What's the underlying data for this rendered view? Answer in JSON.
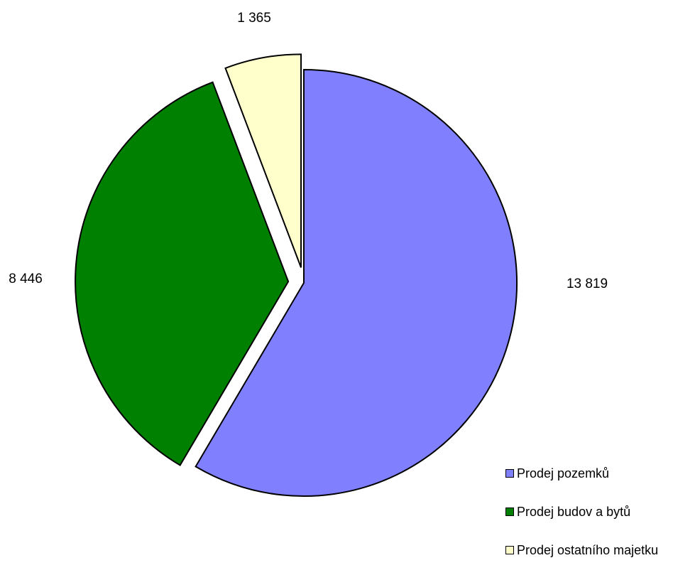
{
  "chart_data": {
    "type": "pie",
    "title": "",
    "legend_position": "bottom-right",
    "slices": [
      {
        "label": "Prodej pozemků",
        "value": 13819,
        "value_label": "13 819",
        "color": "#8080ff",
        "exploded": false
      },
      {
        "label": "Prodej budov a bytů",
        "value": 8446,
        "value_label": "8 446",
        "color": "#008000",
        "exploded": true
      },
      {
        "label": "Prodej ostatního majetku",
        "value": 1365,
        "value_label": "1 365",
        "color": "#ffffcc",
        "exploded": true
      }
    ]
  }
}
